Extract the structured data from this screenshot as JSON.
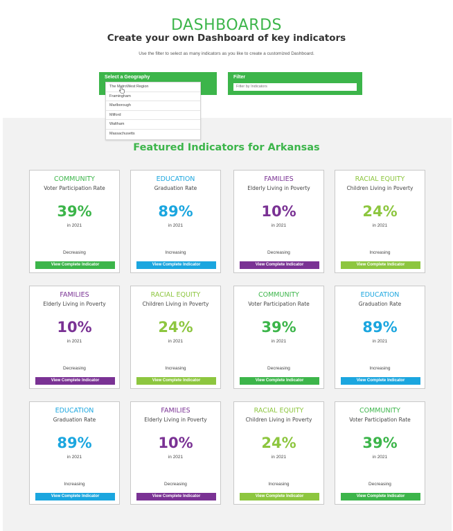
{
  "header": {
    "title": "DASHBOARDS",
    "subtitle": "Create your own Dashboard of key indicators",
    "instructions": "Use the filter to select as many indicators as you like to create a customized Dashboard."
  },
  "geography_filter": {
    "label": "Select a Geography",
    "options": [
      "The MetroWest Region",
      "Framingham",
      "Marlborough",
      "Milford",
      "Waltham",
      "Massachusetts"
    ]
  },
  "indicator_filter": {
    "label": "Filter",
    "placeholder": "Filter by Indicators"
  },
  "featured": {
    "title": "Featured Indicators for Arkansas",
    "button_label": "View Complete Indicator",
    "colors": {
      "COMMUNITY": "#3cb54a",
      "EDUCATION": "#1ba6df",
      "FAMILIES": "#7a3294",
      "RACIAL EQUITY": "#8dc63f"
    },
    "cards": [
      {
        "category": "COMMUNITY",
        "indicator": "Voter Participation Rate",
        "value": "39%",
        "year": "in 2021",
        "trend": "Decreasing"
      },
      {
        "category": "EDUCATION",
        "indicator": "Graduation Rate",
        "value": "89%",
        "year": "in 2021",
        "trend": "Increasing"
      },
      {
        "category": "FAMILIES",
        "indicator": "Elderly Living in Poverty",
        "value": "10%",
        "year": "in 2021",
        "trend": "Decreasing"
      },
      {
        "category": "RACIAL EQUITY",
        "indicator": "Children Living in Poverty",
        "value": "24%",
        "year": "in 2021",
        "trend": "Increasing"
      },
      {
        "category": "FAMILIES",
        "indicator": "Elderly Living in Poverty",
        "value": "10%",
        "year": "in 2021",
        "trend": "Decreasing"
      },
      {
        "category": "RACIAL EQUITY",
        "indicator": "Children Living in Poverty",
        "value": "24%",
        "year": "in 2021",
        "trend": "Increasing"
      },
      {
        "category": "COMMUNITY",
        "indicator": "Voter Participation Rate",
        "value": "39%",
        "year": "in 2021",
        "trend": "Decreasing"
      },
      {
        "category": "EDUCATION",
        "indicator": "Graduation Rate",
        "value": "89%",
        "year": "in 2021",
        "trend": "Increasing"
      },
      {
        "category": "EDUCATION",
        "indicator": "Graduation Rate",
        "value": "89%",
        "year": "in 2021",
        "trend": "Increasing"
      },
      {
        "category": "FAMILIES",
        "indicator": "Elderly Living in Poverty",
        "value": "10%",
        "year": "in 2021",
        "trend": "Decreasing"
      },
      {
        "category": "RACIAL EQUITY",
        "indicator": "Children Living in Poverty",
        "value": "24%",
        "year": "in 2021",
        "trend": "Increasing"
      },
      {
        "category": "COMMUNITY",
        "indicator": "Voter Participation Rate",
        "value": "39%",
        "year": "in 2021",
        "trend": "Decreasing"
      }
    ]
  }
}
